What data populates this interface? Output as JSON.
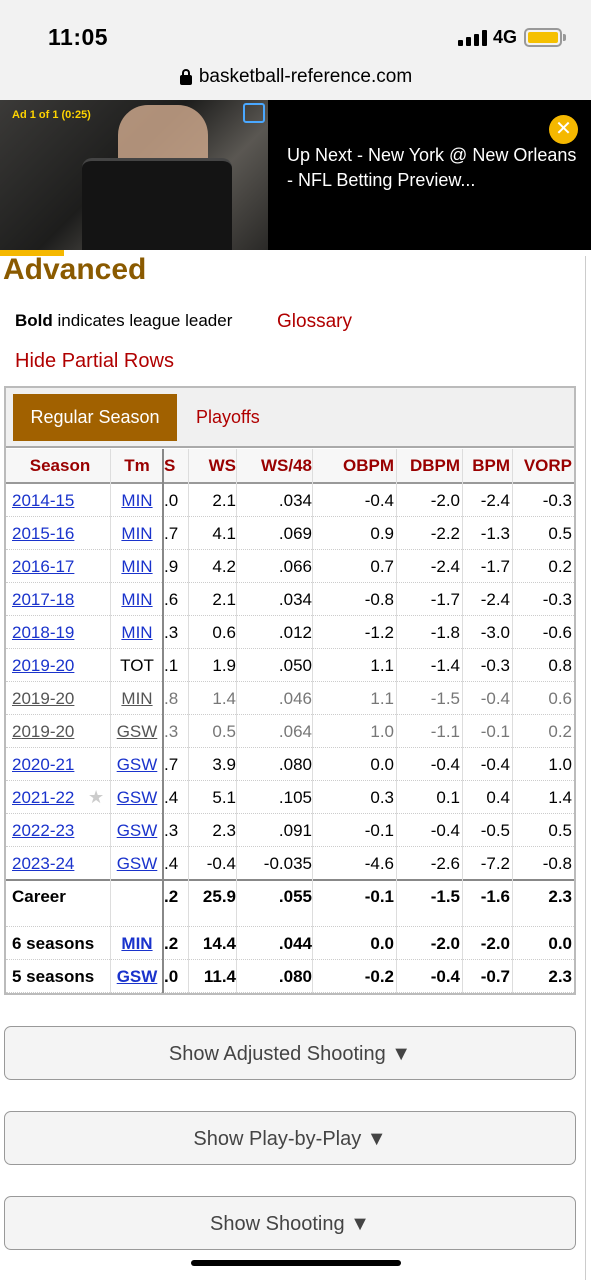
{
  "status": {
    "time": "11:05",
    "network": "4G"
  },
  "browser": {
    "url": "basketball-reference.com"
  },
  "ad": {
    "label": "Ad 1 of 1 (0:25)",
    "next_text": "Up Next - New York @ New Orleans - NFL Betting Preview...",
    "close_glyph": "✕"
  },
  "page": {
    "section_title": "Advanced",
    "legend_bold": "Bold",
    "legend_rest": " indicates league leader",
    "glossary": "Glossary",
    "hide_partial": "Hide Partial Rows",
    "tabs": {
      "regular": "Regular Season",
      "playoffs": "Playoffs"
    }
  },
  "table": {
    "headers": [
      "Season",
      "Tm",
      "VS",
      "WS",
      "WS/48",
      "OBPM",
      "DBPM",
      "BPM",
      "VORP"
    ],
    "rows": [
      {
        "season": "2014-15",
        "tm": "MIN",
        "ws_part": ".0",
        "ws": "2.1",
        "ws48": ".034",
        "obpm": "-0.4",
        "dbpm": "-2.0",
        "bpm": "-2.4",
        "vorp": "-0.3"
      },
      {
        "season": "2015-16",
        "tm": "MIN",
        "ws_part": ".7",
        "ws": "4.1",
        "ws48": ".069",
        "obpm": "0.9",
        "dbpm": "-2.2",
        "bpm": "-1.3",
        "vorp": "0.5"
      },
      {
        "season": "2016-17",
        "tm": "MIN",
        "ws_part": ".9",
        "ws": "4.2",
        "ws48": ".066",
        "obpm": "0.7",
        "dbpm": "-2.4",
        "bpm": "-1.7",
        "vorp": "0.2"
      },
      {
        "season": "2017-18",
        "tm": "MIN",
        "ws_part": ".6",
        "ws": "2.1",
        "ws48": ".034",
        "obpm": "-0.8",
        "dbpm": "-1.7",
        "bpm": "-2.4",
        "vorp": "-0.3"
      },
      {
        "season": "2018-19",
        "tm": "MIN",
        "ws_part": ".3",
        "ws": "0.6",
        "ws48": ".012",
        "obpm": "-1.2",
        "dbpm": "-1.8",
        "bpm": "-3.0",
        "vorp": "-0.6"
      },
      {
        "season": "2019-20",
        "tm": "TOT",
        "ws_part": ".1",
        "ws": "1.9",
        "ws48": ".050",
        "obpm": "1.1",
        "dbpm": "-1.4",
        "bpm": "-0.3",
        "vorp": "0.8"
      },
      {
        "season": "2019-20",
        "tm": "MIN",
        "ws_part": ".8",
        "ws": "1.4",
        "ws48": ".046",
        "obpm": "1.1",
        "dbpm": "-1.5",
        "bpm": "-0.4",
        "vorp": "0.6"
      },
      {
        "season": "2019-20",
        "tm": "GSW",
        "ws_part": ".3",
        "ws": "0.5",
        "ws48": ".064",
        "obpm": "1.0",
        "dbpm": "-1.1",
        "bpm": "-0.1",
        "vorp": "0.2"
      },
      {
        "season": "2020-21",
        "tm": "GSW",
        "ws_part": ".7",
        "ws": "3.9",
        "ws48": ".080",
        "obpm": "0.0",
        "dbpm": "-0.4",
        "bpm": "-0.4",
        "vorp": "1.0"
      },
      {
        "season": "2021-22",
        "tm": "GSW",
        "ws_part": ".4",
        "ws": "5.1",
        "ws48": ".105",
        "obpm": "0.3",
        "dbpm": "0.1",
        "bpm": "0.4",
        "vorp": "1.4",
        "star": "★"
      },
      {
        "season": "2022-23",
        "tm": "GSW",
        "ws_part": ".3",
        "ws": "2.3",
        "ws48": ".091",
        "obpm": "-0.1",
        "dbpm": "-0.4",
        "bpm": "-0.5",
        "vorp": "0.5"
      },
      {
        "season": "2023-24",
        "tm": "GSW",
        "ws_part": ".4",
        "ws": "-0.4",
        "ws48": "-0.035",
        "obpm": "-4.6",
        "dbpm": "-2.6",
        "bpm": "-7.2",
        "vorp": "-0.8"
      }
    ],
    "career": {
      "season": "Career",
      "ws_part": ".2",
      "ws": "25.9",
      "ws48": ".055",
      "obpm": "-0.1",
      "dbpm": "-1.5",
      "bpm": "-1.6",
      "vorp": "2.3"
    },
    "franchise": [
      {
        "season": "6 seasons",
        "tm": "MIN",
        "ws_part": ".2",
        "ws": "14.4",
        "ws48": ".044",
        "obpm": "0.0",
        "dbpm": "-2.0",
        "bpm": "-2.0",
        "vorp": "0.0"
      },
      {
        "season": "5 seasons",
        "tm": "GSW",
        "ws_part": ".0",
        "ws": "11.4",
        "ws48": ".080",
        "obpm": "-0.2",
        "dbpm": "-0.4",
        "bpm": "-0.7",
        "vorp": "2.3"
      }
    ]
  },
  "buttons": {
    "adjusted": "Show Adjusted Shooting ▼",
    "pbp": "Show Play-by-Play ▼",
    "shooting": "Show Shooting ▼"
  }
}
